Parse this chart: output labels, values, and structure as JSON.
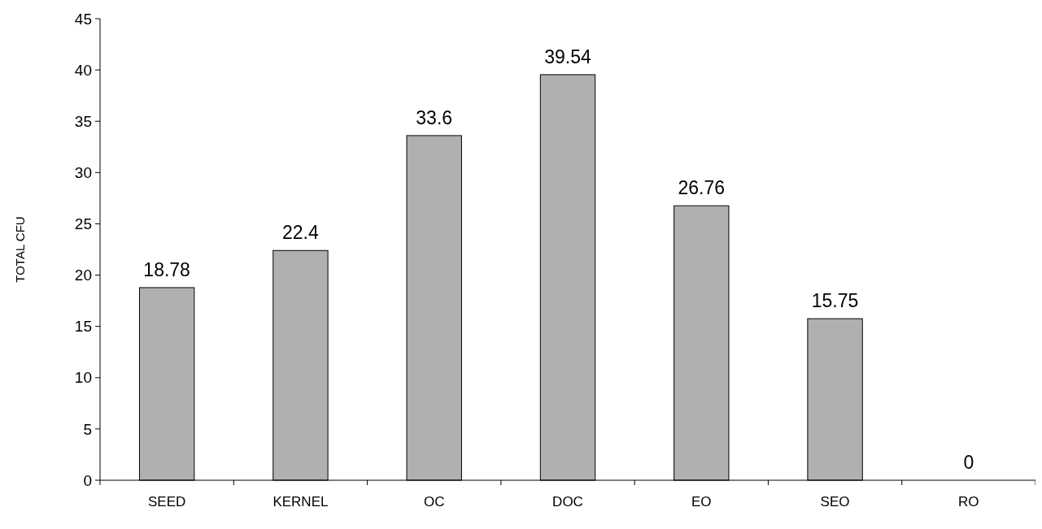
{
  "chart_data": {
    "type": "bar",
    "ylabel": "TOTAL CFU",
    "categories": [
      "SEED",
      "KERNEL",
      "OC",
      "DOC",
      "EO",
      "SEO",
      "RO"
    ],
    "values": [
      18.78,
      22.4,
      33.6,
      39.54,
      26.76,
      15.75,
      0
    ],
    "color": "#b0b0b0",
    "ylim": [
      0,
      45
    ],
    "yticks": [
      0,
      5,
      10,
      15,
      20,
      25,
      30,
      35,
      40,
      45
    ],
    "data_labels": true,
    "grid": false
  }
}
